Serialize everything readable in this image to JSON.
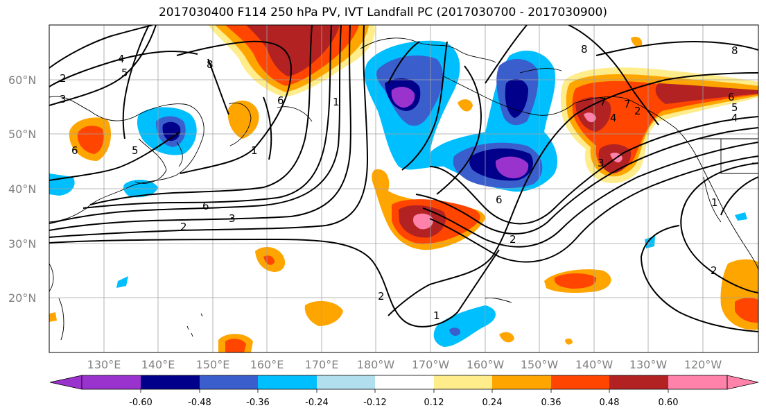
{
  "title": "2017030400 F114 250 hPa PV, IVT Landfall PC (2017030700 - 2017030900)",
  "lat_labels": [
    "60°N",
    "50°N",
    "40°N",
    "30°N",
    "20°N"
  ],
  "lon_labels": [
    "130°E",
    "140°E",
    "150°E",
    "160°E",
    "170°E",
    "180°W",
    "170°W",
    "160°W",
    "150°W",
    "140°W",
    "130°W",
    "120°W"
  ],
  "colorbar": {
    "colors": [
      "#9a32cd",
      "#00008b",
      "#3a5fcd",
      "#00bfff",
      "#b2dfee",
      "#ffffff",
      "#ffec8b",
      "#ffa500",
      "#ff4500",
      "#b22222",
      "#ff82ab"
    ],
    "tick_labels": [
      "-0.60",
      "-0.48",
      "-0.36",
      "-0.24",
      "-0.12",
      "0.12",
      "0.24",
      "0.36",
      "0.48",
      "0.60"
    ]
  },
  "contour_labels": [
    "2",
    "3",
    "4",
    "5",
    "6",
    "5",
    "6",
    "8",
    "1",
    "1",
    "6",
    "2",
    "3",
    "2",
    "6",
    "2",
    "1",
    "2",
    "8",
    "7",
    "6",
    "5",
    "4",
    "3",
    "2",
    "8",
    "4",
    "7",
    "1"
  ]
}
